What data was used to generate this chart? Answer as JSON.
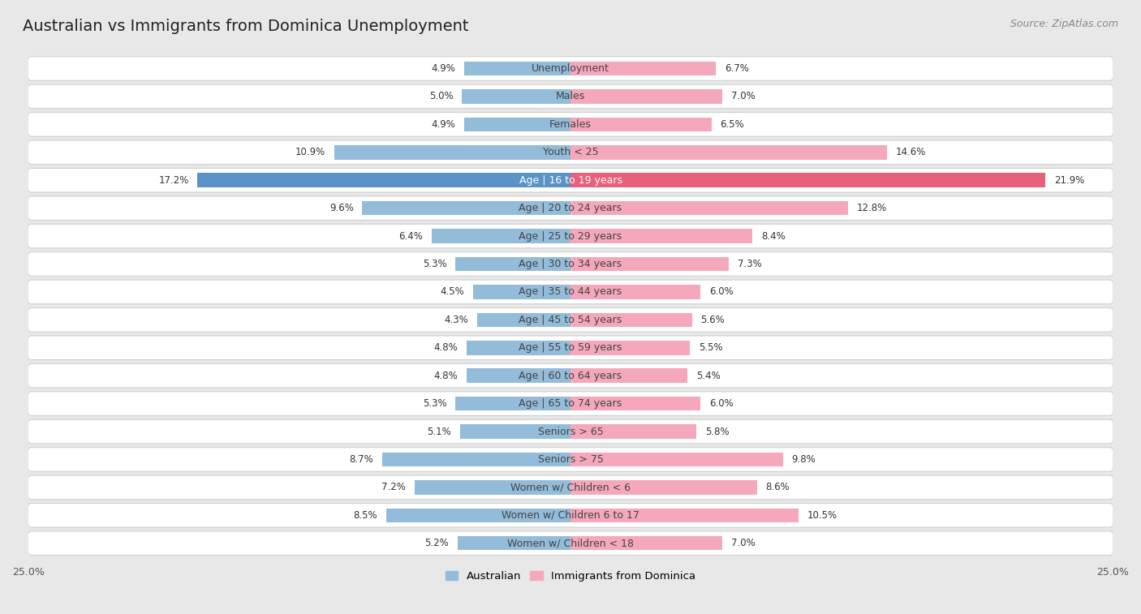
{
  "title": "Australian vs Immigrants from Dominica Unemployment",
  "source": "Source: ZipAtlas.com",
  "categories": [
    "Unemployment",
    "Males",
    "Females",
    "Youth < 25",
    "Age | 16 to 19 years",
    "Age | 20 to 24 years",
    "Age | 25 to 29 years",
    "Age | 30 to 34 years",
    "Age | 35 to 44 years",
    "Age | 45 to 54 years",
    "Age | 55 to 59 years",
    "Age | 60 to 64 years",
    "Age | 65 to 74 years",
    "Seniors > 65",
    "Seniors > 75",
    "Women w/ Children < 6",
    "Women w/ Children 6 to 17",
    "Women w/ Children < 18"
  ],
  "australian": [
    4.9,
    5.0,
    4.9,
    10.9,
    17.2,
    9.6,
    6.4,
    5.3,
    4.5,
    4.3,
    4.8,
    4.8,
    5.3,
    5.1,
    8.7,
    7.2,
    8.5,
    5.2
  ],
  "immigrants": [
    6.7,
    7.0,
    6.5,
    14.6,
    21.9,
    12.8,
    8.4,
    7.3,
    6.0,
    5.6,
    5.5,
    5.4,
    6.0,
    5.8,
    9.8,
    8.6,
    10.5,
    7.0
  ],
  "australian_color": "#92bcda",
  "immigrant_color": "#f5a8bb",
  "australian_highlight_color": "#5b92c7",
  "immigrant_highlight_color": "#e8607a",
  "highlight_index": 4,
  "row_bg_color": "#ffffff",
  "row_border_color": "#d0d0d0",
  "outer_bg_color": "#e8e8e8",
  "axis_limit": 25.0,
  "legend_australian": "Australian",
  "legend_immigrant": "Immigrants from Dominica",
  "title_fontsize": 14,
  "source_fontsize": 9,
  "label_fontsize": 9,
  "value_fontsize": 8.5
}
